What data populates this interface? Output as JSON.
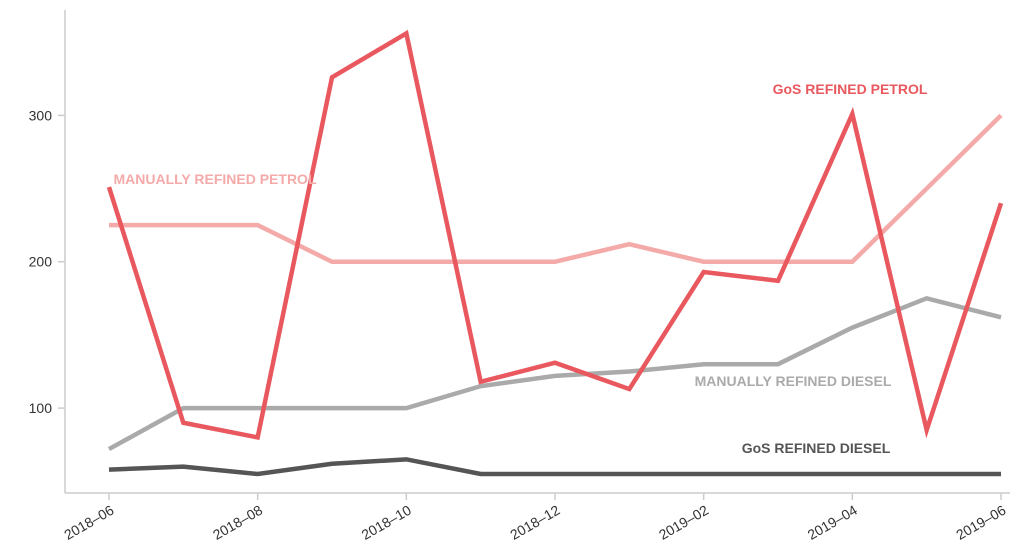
{
  "chart_data": {
    "type": "line",
    "categories": [
      "2018–06",
      null,
      "2018–08",
      null,
      "2018–10",
      null,
      "2018–12",
      null,
      "2019–02",
      null,
      "2019–04",
      null,
      "2019–06"
    ],
    "series": [
      {
        "name": "MANUALLY REFINED PETROL",
        "color": "#f4aaa9",
        "values": [
          225,
          225,
          225,
          200,
          200,
          200,
          200,
          212,
          200,
          200,
          200,
          250,
          300
        ]
      },
      {
        "name": "MANUALLY REFINED DIESEL",
        "color": "#aaaaaa",
        "values": [
          72,
          100,
          100,
          100,
          100,
          115,
          122,
          125,
          130,
          130,
          155,
          175,
          162
        ]
      },
      {
        "name": "GoS REFINED DIESEL",
        "color": "#555555",
        "values": [
          58,
          60,
          55,
          62,
          65,
          55,
          55,
          55,
          55,
          55,
          55,
          55,
          55
        ]
      },
      {
        "name": "GoS REFINED PETROL",
        "color": "#e9585e",
        "values": [
          251,
          90,
          80,
          326,
          356,
          118,
          131,
          113,
          193,
          187,
          301,
          85,
          240
        ]
      }
    ],
    "ylim": [
      42,
      372
    ],
    "yticks": [
      100,
      200,
      300
    ]
  }
}
